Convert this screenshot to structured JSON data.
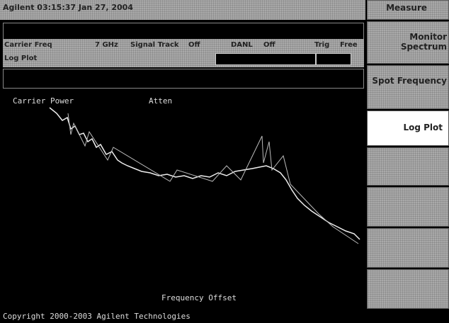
{
  "header": {
    "title": "Agilent 03:15:37 Jan 27, 2004"
  },
  "status": {
    "carrier_freq_label": "Carrier Freq",
    "carrier_freq_value": "7 GHz",
    "signal_track_label": "Signal Track",
    "signal_track_value": "Off",
    "danl_label": "DANL",
    "danl_value": "Off",
    "trig_label": "Trig",
    "trig_value": "Free",
    "mode": "Log Plot"
  },
  "plot": {
    "top_left": "Carrier Power",
    "top_mid": "Atten",
    "x_label": "Frequency Offset"
  },
  "footer": {
    "copyright": "Copyright 2000-2003 Agilent Technologies"
  },
  "menu": {
    "title": "Measure",
    "keys": [
      "Monitor Spectrum",
      "Spot Frequency",
      "Log Plot"
    ]
  }
}
